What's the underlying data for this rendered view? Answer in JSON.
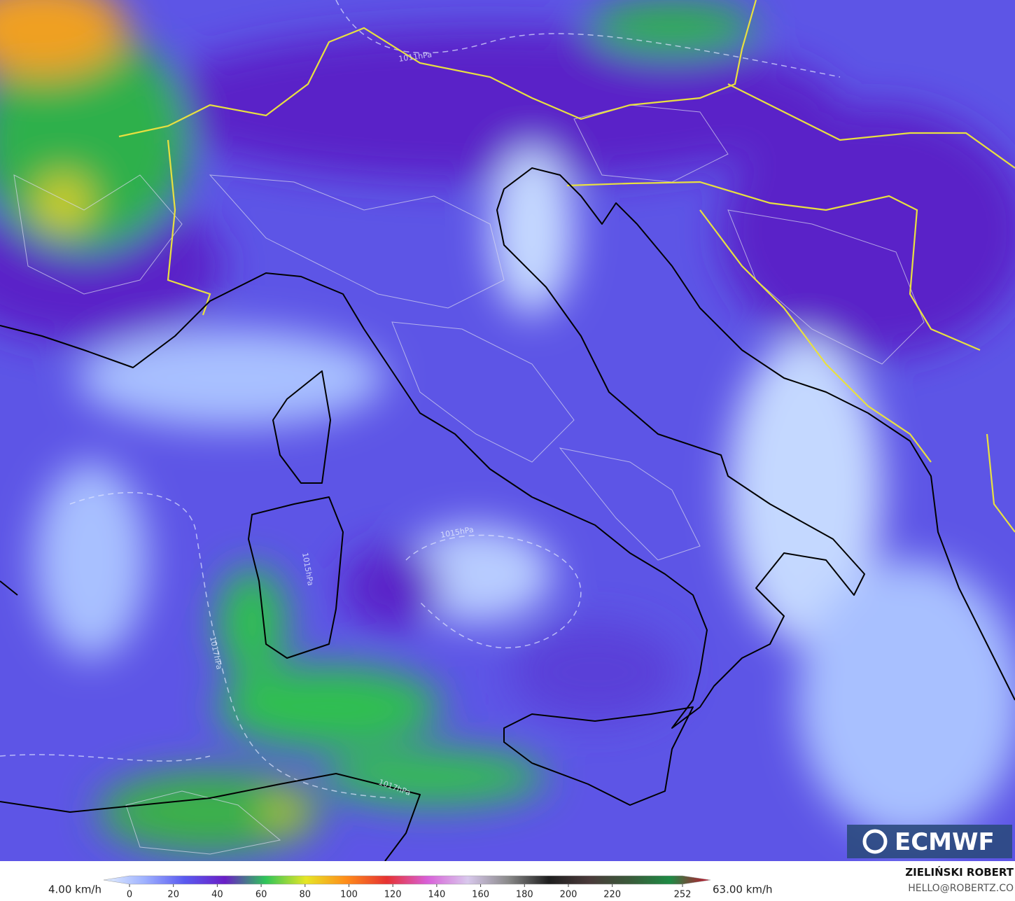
{
  "map": {
    "isobar_labels": [
      "1011hPa",
      "1015hPa",
      "1015hPa",
      "1017hPa",
      "1017hPa"
    ],
    "logo": "ECMWF"
  },
  "legend": {
    "min_label": "4.00 km/h",
    "max_label": "63.00 km/h",
    "range": [
      0,
      252
    ],
    "ticks": [
      0,
      20,
      40,
      60,
      80,
      100,
      120,
      140,
      160,
      180,
      200,
      220,
      252
    ],
    "colors": [
      "#e4f0ff",
      "#9fb2ff",
      "#5a5af0",
      "#6a1fc6",
      "#2ec45a",
      "#e6e626",
      "#ff8c1a",
      "#e63232",
      "#d860d8",
      "#d8c8ec",
      "#8a8a8a",
      "#1e1e1e",
      "#4a3a3a",
      "#3a5a3a",
      "#1e8a44",
      "#c8102e"
    ]
  },
  "footer": {
    "author": "ZIELIŃSKI ROBERT",
    "email": "HELLO@ROBERTZ.CO"
  }
}
